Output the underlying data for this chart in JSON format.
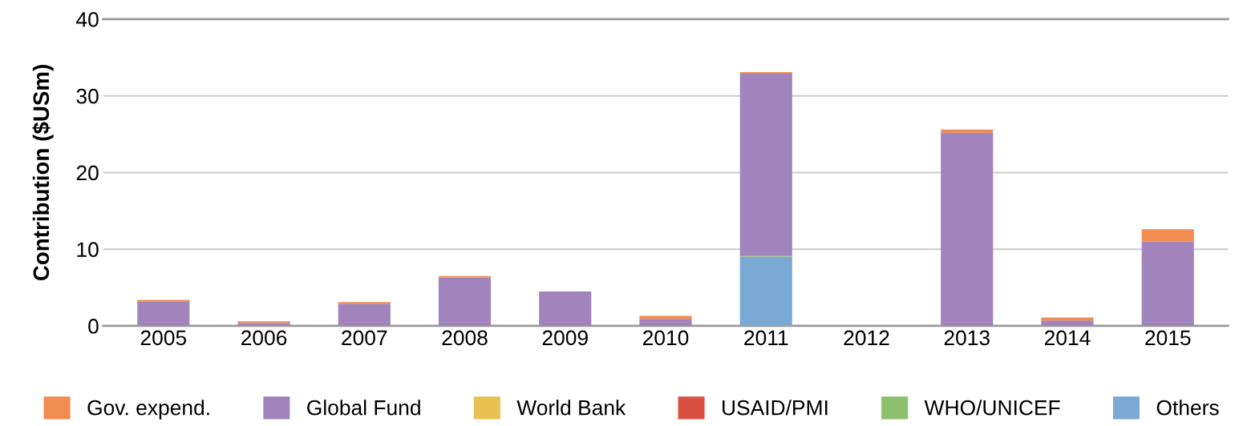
{
  "chart_data": {
    "type": "bar",
    "stacked": true,
    "ylabel": "Contribution ($USm)",
    "categories": [
      "2005",
      "2006",
      "2007",
      "2008",
      "2009",
      "2010",
      "2011",
      "2012",
      "2013",
      "2014",
      "2015"
    ],
    "series": [
      {
        "name": "Others",
        "color": "#7aa9d5",
        "values": [
          0,
          0,
          0,
          0,
          0,
          0,
          9.0,
          0,
          0,
          0,
          0
        ]
      },
      {
        "name": "WHO/UNICEF",
        "color": "#8cc06c",
        "values": [
          0,
          0,
          0,
          0,
          0,
          0,
          0.1,
          0,
          0,
          0,
          0
        ]
      },
      {
        "name": "USAID/PMI",
        "color": "#d94f42",
        "values": [
          0,
          0,
          0,
          0,
          0,
          0,
          0,
          0,
          0,
          0,
          0
        ]
      },
      {
        "name": "World Bank",
        "color": "#e9c052",
        "values": [
          0,
          0,
          0,
          0,
          0,
          0,
          0,
          0,
          0,
          0,
          0
        ]
      },
      {
        "name": "Global Fund",
        "color": "#a084bb",
        "values": [
          3.2,
          0.4,
          2.9,
          6.3,
          4.5,
          0.9,
          23.8,
          0,
          25.2,
          0.7,
          11.0
        ]
      },
      {
        "name": "Gov. expend.",
        "color": "#f08c50",
        "values": [
          0.2,
          0.2,
          0.2,
          0.2,
          0,
          0.4,
          0.2,
          0,
          0.4,
          0.4,
          1.6
        ]
      }
    ],
    "ylim": [
      0,
      40
    ],
    "yticks": [
      0,
      10,
      20,
      30,
      40
    ],
    "grid": "y",
    "legend": "bottom"
  }
}
